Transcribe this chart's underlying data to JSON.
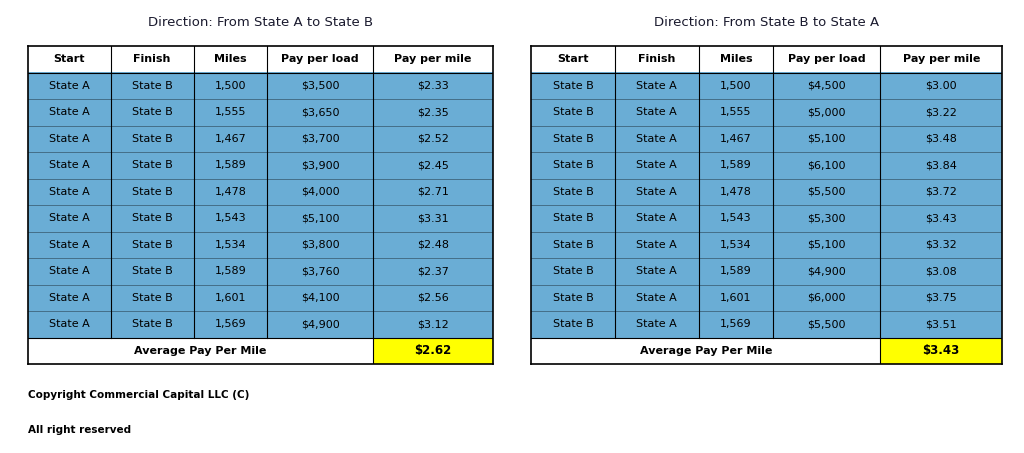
{
  "table1": {
    "title": "Direction: From State A to State B",
    "headers": [
      "Start",
      "Finish",
      "Miles",
      "Pay per load",
      "Pay per mile"
    ],
    "rows": [
      [
        "State A",
        "State B",
        "1,500",
        "$3,500",
        "$2.33"
      ],
      [
        "State A",
        "State B",
        "1,555",
        "$3,650",
        "$2.35"
      ],
      [
        "State A",
        "State B",
        "1,467",
        "$3,700",
        "$2.52"
      ],
      [
        "State A",
        "State B",
        "1,589",
        "$3,900",
        "$2.45"
      ],
      [
        "State A",
        "State B",
        "1,478",
        "$4,000",
        "$2.71"
      ],
      [
        "State A",
        "State B",
        "1,543",
        "$5,100",
        "$3.31"
      ],
      [
        "State A",
        "State B",
        "1,534",
        "$3,800",
        "$2.48"
      ],
      [
        "State A",
        "State B",
        "1,589",
        "$3,760",
        "$2.37"
      ],
      [
        "State A",
        "State B",
        "1,601",
        "$4,100",
        "$2.56"
      ],
      [
        "State A",
        "State B",
        "1,569",
        "$4,900",
        "$3.12"
      ]
    ],
    "avg_label": "Average Pay Per Mile",
    "avg_value": "$2.62"
  },
  "table2": {
    "title": "Direction: From State B to State A",
    "headers": [
      "Start",
      "Finish",
      "Miles",
      "Pay per load",
      "Pay per mile"
    ],
    "rows": [
      [
        "State B",
        "State A",
        "1,500",
        "$4,500",
        "$3.00"
      ],
      [
        "State B",
        "State A",
        "1,555",
        "$5,000",
        "$3.22"
      ],
      [
        "State B",
        "State A",
        "1,467",
        "$5,100",
        "$3.48"
      ],
      [
        "State B",
        "State A",
        "1,589",
        "$6,100",
        "$3.84"
      ],
      [
        "State B",
        "State A",
        "1,478",
        "$5,500",
        "$3.72"
      ],
      [
        "State B",
        "State A",
        "1,543",
        "$5,300",
        "$3.43"
      ],
      [
        "State B",
        "State A",
        "1,534",
        "$5,100",
        "$3.32"
      ],
      [
        "State B",
        "State A",
        "1,589",
        "$4,900",
        "$3.08"
      ],
      [
        "State B",
        "State A",
        "1,601",
        "$6,000",
        "$3.75"
      ],
      [
        "State B",
        "State A",
        "1,569",
        "$5,500",
        "$3.51"
      ]
    ],
    "avg_label": "Average Pay Per Mile",
    "avg_value": "$3.43"
  },
  "title_bg_color": "#4A86C8",
  "title_text_color": "#1a1a2e",
  "header_bg_color": "#ffffff",
  "header_text_color": "#000000",
  "row_bg_color": "#6aadd5",
  "row_text_color": "#000000",
  "avg_row_bg_color": "#ffffff",
  "avg_text_color": "#000000",
  "avg_value_bg_color": "#FFFF00",
  "avg_value_text_color": "#000000",
  "border_color": "#000000",
  "fig_bg_color": "#ffffff",
  "copyright_text1": "Copyright Commercial Capital LLC (C)",
  "copyright_text2": "All right reserved"
}
